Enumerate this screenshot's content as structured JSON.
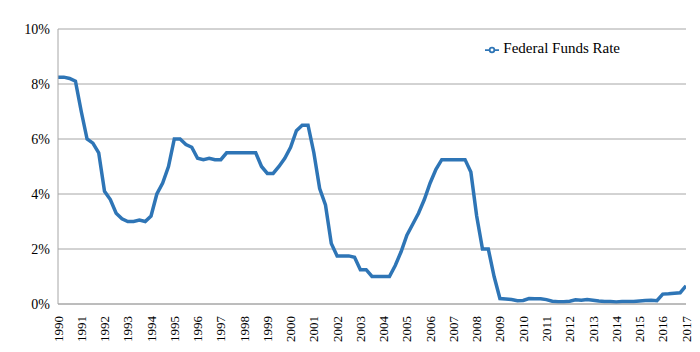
{
  "chart_data": {
    "type": "line",
    "x": [
      1990,
      1990.25,
      1990.5,
      1990.75,
      1991,
      1991.25,
      1991.5,
      1991.75,
      1992,
      1992.25,
      1992.5,
      1992.75,
      1993,
      1993.25,
      1993.5,
      1993.75,
      1994,
      1994.25,
      1994.5,
      1994.75,
      1995,
      1995.25,
      1995.5,
      1995.75,
      1996,
      1996.25,
      1996.5,
      1996.75,
      1997,
      1997.25,
      1997.5,
      1997.75,
      1998,
      1998.25,
      1998.5,
      1998.75,
      1999,
      1999.25,
      1999.5,
      1999.75,
      2000,
      2000.25,
      2000.5,
      2000.75,
      2001,
      2001.25,
      2001.5,
      2001.75,
      2002,
      2002.25,
      2002.5,
      2002.75,
      2003,
      2003.25,
      2003.5,
      2003.75,
      2004,
      2004.25,
      2004.5,
      2004.75,
      2005,
      2005.25,
      2005.5,
      2005.75,
      2006,
      2006.25,
      2006.5,
      2006.75,
      2007,
      2007.25,
      2007.5,
      2007.75,
      2008,
      2008.25,
      2008.5,
      2008.75,
      2009,
      2009.25,
      2009.5,
      2009.75,
      2010,
      2010.25,
      2010.5,
      2010.75,
      2011,
      2011.25,
      2011.5,
      2011.75,
      2012,
      2012.25,
      2012.5,
      2012.75,
      2013,
      2013.25,
      2013.5,
      2013.75,
      2014,
      2014.25,
      2014.5,
      2014.75,
      2015,
      2015.25,
      2015.5,
      2015.75,
      2016,
      2016.25,
      2016.5,
      2016.75,
      2017
    ],
    "series": [
      {
        "name": "Federal Funds Rate",
        "color": "#2e75b6",
        "values": [
          8.25,
          8.25,
          8.2,
          8.1,
          7.0,
          6.0,
          5.85,
          5.5,
          4.1,
          3.8,
          3.3,
          3.1,
          3.0,
          3.0,
          3.05,
          3.0,
          3.2,
          4.0,
          4.4,
          5.0,
          6.0,
          6.0,
          5.8,
          5.7,
          5.3,
          5.25,
          5.3,
          5.25,
          5.25,
          5.5,
          5.5,
          5.5,
          5.5,
          5.5,
          5.5,
          5.0,
          4.75,
          4.75,
          5.0,
          5.3,
          5.7,
          6.3,
          6.5,
          6.5,
          5.5,
          4.2,
          3.6,
          2.2,
          1.75,
          1.75,
          1.75,
          1.7,
          1.25,
          1.25,
          1.0,
          1.0,
          1.0,
          1.0,
          1.4,
          1.9,
          2.5,
          2.9,
          3.3,
          3.8,
          4.4,
          4.9,
          5.25,
          5.25,
          5.25,
          5.25,
          5.25,
          4.8,
          3.2,
          2.0,
          2.0,
          1.0,
          0.2,
          0.18,
          0.16,
          0.12,
          0.13,
          0.2,
          0.19,
          0.19,
          0.16,
          0.1,
          0.08,
          0.08,
          0.1,
          0.15,
          0.14,
          0.16,
          0.14,
          0.11,
          0.09,
          0.09,
          0.07,
          0.09,
          0.09,
          0.09,
          0.11,
          0.13,
          0.14,
          0.12,
          0.36,
          0.37,
          0.39,
          0.41,
          0.66
        ]
      }
    ],
    "xlim": [
      1990,
      2017
    ],
    "xticks": [
      1990,
      1991,
      1992,
      1993,
      1994,
      1995,
      1996,
      1997,
      1998,
      1999,
      2000,
      2001,
      2002,
      2003,
      2004,
      2005,
      2006,
      2007,
      2008,
      2009,
      2010,
      2011,
      2012,
      2013,
      2014,
      2015,
      2016,
      2017
    ],
    "ylim": [
      0,
      10
    ],
    "yticks": [
      {
        "value": 0,
        "label": "0%"
      },
      {
        "value": 2,
        "label": "2%"
      },
      {
        "value": 4,
        "label": "4%"
      },
      {
        "value": 6,
        "label": "6%"
      },
      {
        "value": 8,
        "label": "8%"
      },
      {
        "value": 10,
        "label": "10%"
      }
    ],
    "grid": true,
    "legend": "upper right"
  }
}
